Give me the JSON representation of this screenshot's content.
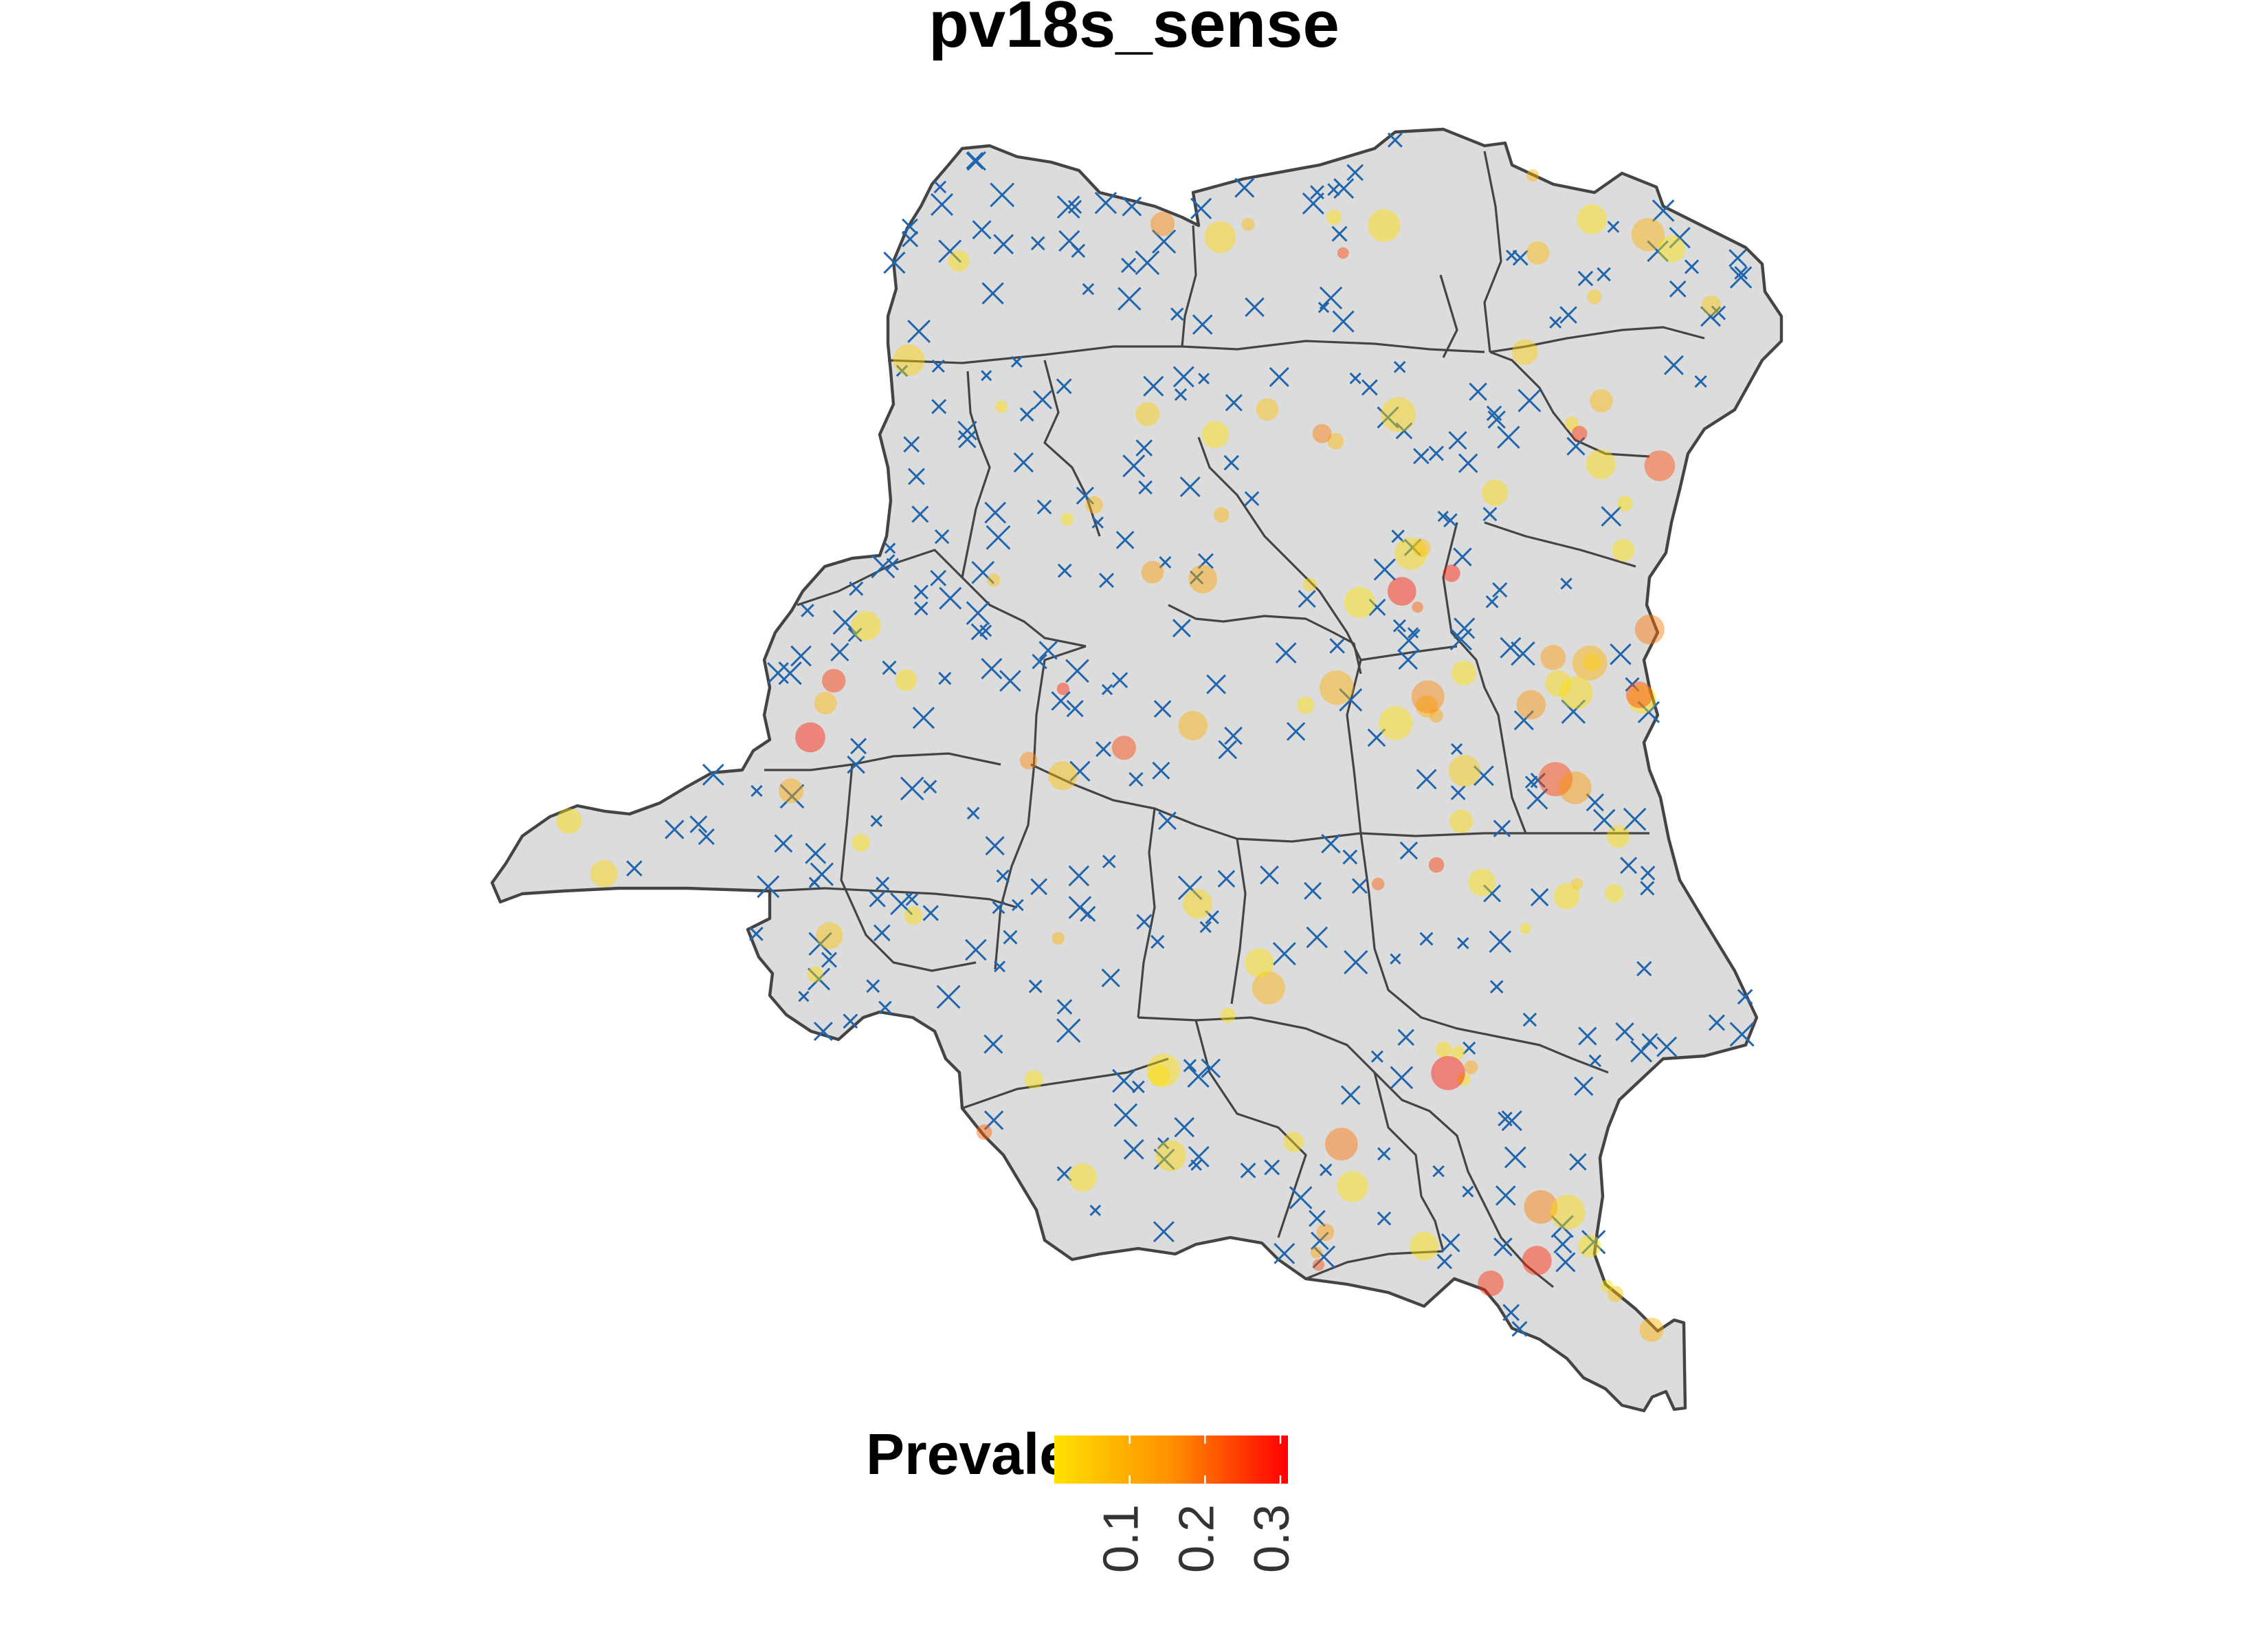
{
  "title": "pv18s_sense",
  "legend": {
    "title": "Prevalence",
    "ticks": [
      "0.1",
      "0.2",
      "0.3"
    ],
    "tick_values": [
      0.1,
      0.2,
      0.3
    ],
    "range": [
      0,
      0.31
    ],
    "colors": [
      "#FFE000",
      "#FF9000",
      "#FF0000"
    ]
  },
  "style": {
    "land_fill": "#DCDCDC",
    "border_color": "#444444",
    "absence_marker_color": "#2166AC"
  }
}
